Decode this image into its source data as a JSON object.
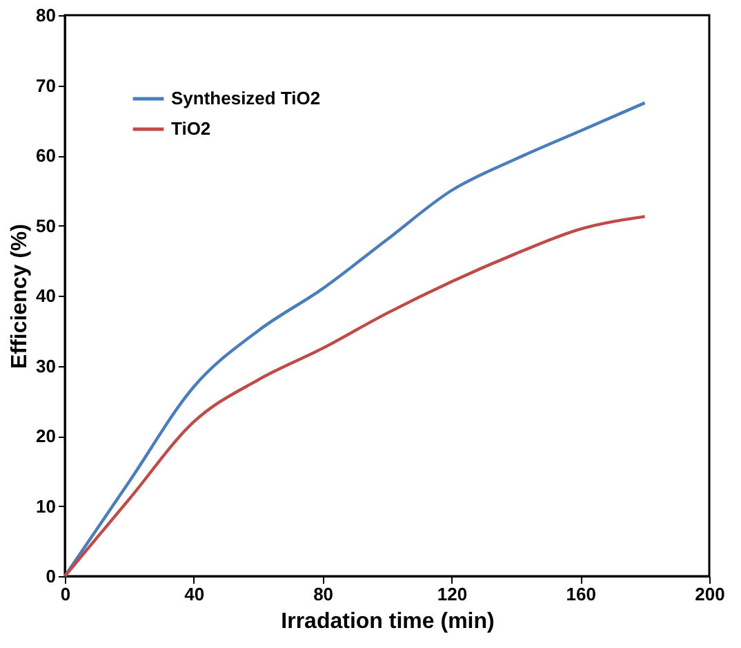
{
  "chart_data": {
    "type": "line",
    "xlabel": "Irradation time (min)",
    "ylabel": "Efficiency (%)",
    "x": [
      0,
      20,
      40,
      60,
      80,
      100,
      120,
      140,
      160,
      180
    ],
    "series": [
      {
        "name": "Synthesized TiO2",
        "color": "#4a7ebb",
        "values": [
          0,
          13.5,
          27,
          35,
          41,
          48,
          55,
          59.5,
          63.5,
          67.5
        ]
      },
      {
        "name": "TiO2",
        "color": "#be4b48",
        "values": [
          0,
          11,
          22,
          28,
          32.5,
          37.5,
          42,
          46,
          49.5,
          51.3
        ]
      }
    ],
    "xlim": [
      0,
      200
    ],
    "xticks": [
      0,
      40,
      80,
      120,
      160,
      200
    ],
    "ylim": [
      0,
      80
    ],
    "yticks": [
      0,
      10,
      20,
      30,
      40,
      50,
      60,
      70,
      80
    ],
    "grid": false,
    "legend": "top left",
    "marker": "none",
    "line_style": "solid"
  }
}
